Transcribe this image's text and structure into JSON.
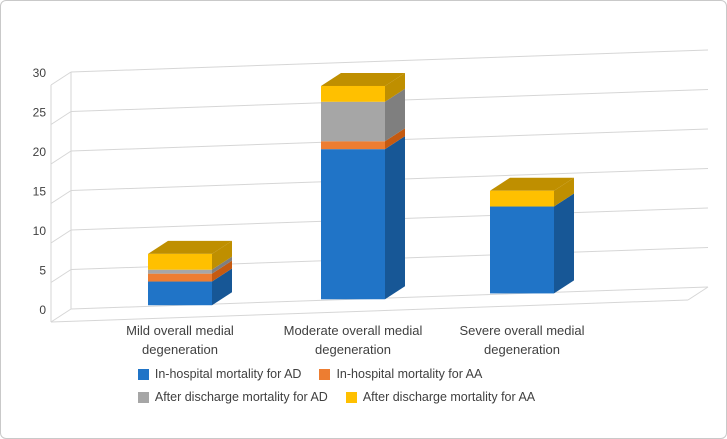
{
  "figure": {
    "background": "#FFFFFF",
    "border_color": "#C9C9C9",
    "axis_text_color": "#404040",
    "gridline_color": "#D6D6D6"
  },
  "chart_data": {
    "type": "bar",
    "subtype": "3d-stacked-column",
    "title": "",
    "xlabel": "",
    "ylabel": "",
    "categories": [
      "Mild overall medial degeneration",
      "Moderate overall medial degeneration",
      "Severe overall medial degeneration"
    ],
    "series": [
      {
        "name": "In-hospital mortality for AD",
        "color": "#2074C7",
        "dark": "#175796",
        "values": [
          3,
          19,
          11
        ]
      },
      {
        "name": "In-hospital mortality for AA",
        "color": "#ED7D31",
        "dark": "#C55A11",
        "values": [
          1,
          1,
          0
        ]
      },
      {
        "name": "After discharge mortality for AD",
        "color": "#A6A6A6",
        "dark": "#7F7F7F",
        "values": [
          0.5,
          5,
          0
        ]
      },
      {
        "name": "After discharge mortality for AA",
        "color": "#FFC000",
        "dark": "#BF8F00",
        "values": [
          2,
          2,
          2
        ]
      }
    ],
    "y_ticks": [
      0,
      5,
      10,
      15,
      20,
      25,
      30
    ],
    "ylim": [
      0,
      30
    ],
    "grid": true,
    "legend_position": "bottom"
  }
}
